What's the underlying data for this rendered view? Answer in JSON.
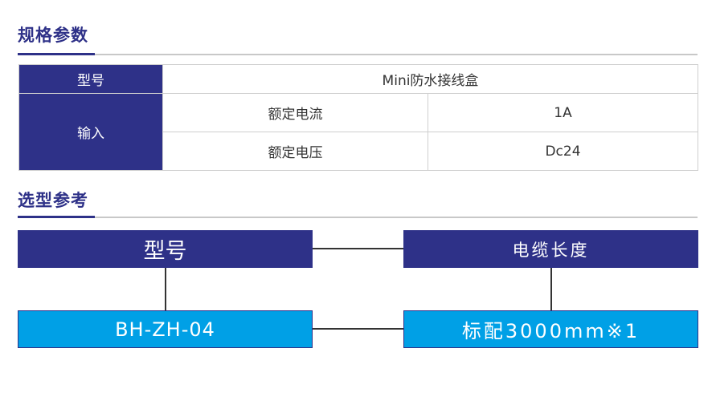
{
  "spec": {
    "title": "规格参数",
    "rows": {
      "model_label": "型号",
      "model_value": "Mini防水接线盒",
      "input_label": "输入",
      "current_label": "额定电流",
      "current_value": "1A",
      "voltage_label": "额定电压",
      "voltage_value": "Dc24"
    }
  },
  "selection": {
    "title": "选型参考",
    "model_header": "型号",
    "cable_header": "电缆长度",
    "model_value": "BH-ZH-04",
    "cable_value": "标配3000mm※1"
  },
  "colors": {
    "navy": "#2e3188",
    "cyan": "#00a0e6"
  }
}
